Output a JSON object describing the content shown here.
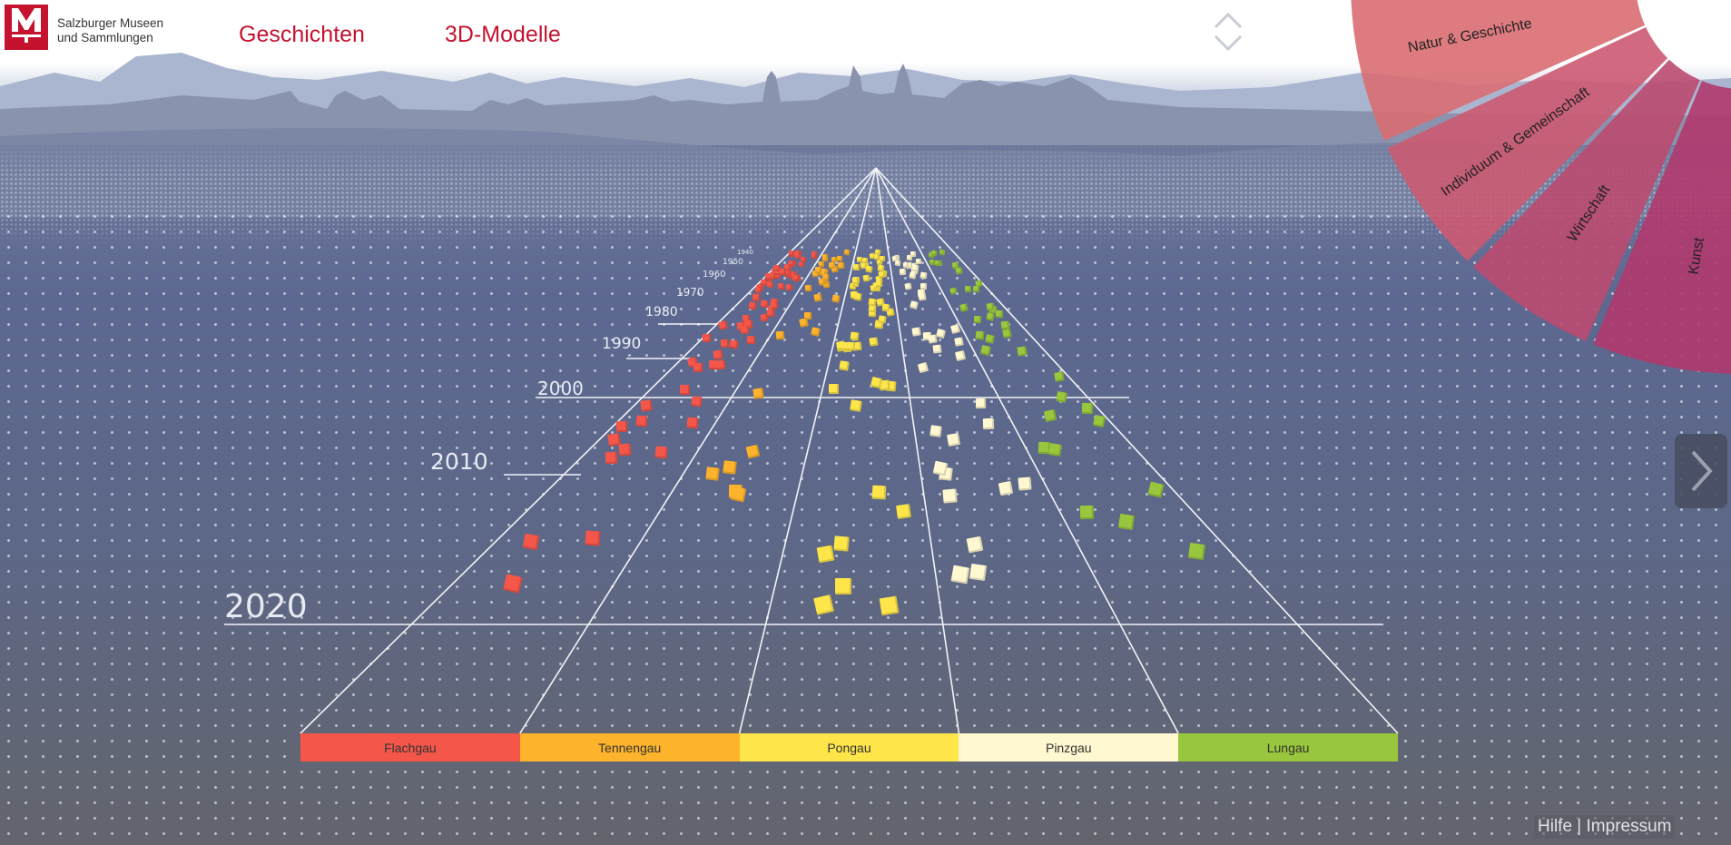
{
  "header": {
    "logo_alt": "M",
    "org_line1": "Salzburger Museen",
    "org_line2": "und Sammlungen",
    "nav": [
      {
        "label": "Geschichten"
      },
      {
        "label": "3D-Modelle"
      }
    ]
  },
  "wheel": {
    "segments": [
      {
        "label": "Natur & Geschichte",
        "color": "#d96d72"
      },
      {
        "label": "Individuum & Gemeinschaft",
        "color": "#cc5a72"
      },
      {
        "label": "Wirtschaft",
        "color": "#bb4a70"
      },
      {
        "label": "Kunst",
        "color": "#b0396e"
      }
    ]
  },
  "timeline": {
    "years": [
      "2020",
      "2010",
      "2000",
      "1990",
      "1980",
      "1970",
      "1960",
      "1950",
      "1940"
    ]
  },
  "regions": [
    {
      "label": "Flachgau",
      "color": "#f4564a"
    },
    {
      "label": "Tennengau",
      "color": "#fdb32c"
    },
    {
      "label": "Pongau",
      "color": "#fde54a"
    },
    {
      "label": "Pinzgau",
      "color": "#fff8d0"
    },
    {
      "label": "Lungau",
      "color": "#98c63c"
    }
  ],
  "footer": {
    "help": "Hilfe",
    "separator": "|",
    "imprint": "Impressum"
  }
}
